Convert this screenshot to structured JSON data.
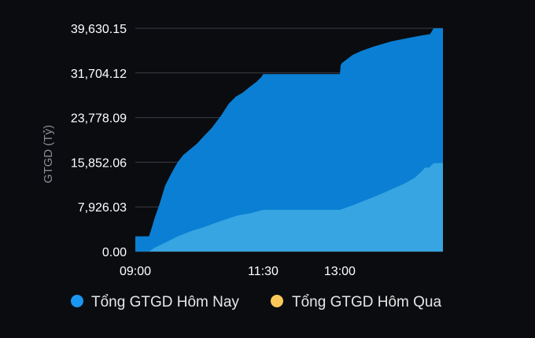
{
  "chart_data": {
    "type": "area",
    "ylabel": "GTGD (Tỷ)",
    "xlabel": "",
    "title": "",
    "ylim": [
      0,
      39630.15
    ],
    "y_ticks": [
      "0.00",
      "7,926.03",
      "15,852.06",
      "23,778.09",
      "31,704.12",
      "39,630.15"
    ],
    "y_tick_values": [
      0,
      7926.03,
      15852.06,
      23778.09,
      31704.12,
      39630.15
    ],
    "x_ticks": [
      {
        "label": "09:00",
        "minute": 540
      },
      {
        "label": "11:30",
        "minute": 690
      },
      {
        "label": "13:00",
        "minute": 780
      }
    ],
    "x_range_minutes": [
      540,
      901
    ],
    "grid": "horizontal",
    "legend_position": "bottom",
    "legend": [
      {
        "label": "Tổng GTGD Hôm Nay",
        "color": "#1a97f0"
      },
      {
        "label": "Tổng GTGD Hôm Qua",
        "color": "#fac85a"
      }
    ],
    "series": [
      {
        "name": "Tổng GTGD Hôm Nay",
        "color": "#0b7fd3",
        "x_minutes": [
          540,
          556,
          558,
          563,
          569,
          575,
          582,
          586,
          590,
          596,
          604,
          612,
          620,
          630,
          640,
          650,
          658,
          666,
          674,
          682,
          688,
          690,
          720,
          750,
          780,
          781,
          782,
          788,
          795,
          805,
          820,
          840,
          860,
          874,
          886,
          890,
          901
        ],
        "values": [
          2700,
          2700,
          3600,
          6100,
          8700,
          11700,
          13800,
          14900,
          15900,
          17100,
          18100,
          19100,
          20400,
          22000,
          24000,
          26300,
          27500,
          28200,
          29200,
          30100,
          31000,
          31500,
          31500,
          31500,
          31500,
          33000,
          33400,
          34100,
          34900,
          35600,
          36400,
          37300,
          37900,
          38300,
          38600,
          39630,
          39630
        ]
      },
      {
        "name": "Tổng GTGD Hôm Qua",
        "color": "#37a5e2",
        "x_minutes": [
          540,
          556,
          563,
          574,
          590,
          605,
          620,
          640,
          660,
          675,
          690,
          720,
          750,
          780,
          795,
          810,
          825,
          840,
          855,
          868,
          875,
          880,
          885,
          890,
          901
        ],
        "values": [
          0,
          0,
          700,
          1500,
          2700,
          3600,
          4300,
          5400,
          6400,
          6800,
          7400,
          7400,
          7400,
          7400,
          8200,
          9100,
          10000,
          11000,
          12000,
          13100,
          14100,
          14900,
          14900,
          15700,
          15700
        ]
      }
    ]
  }
}
